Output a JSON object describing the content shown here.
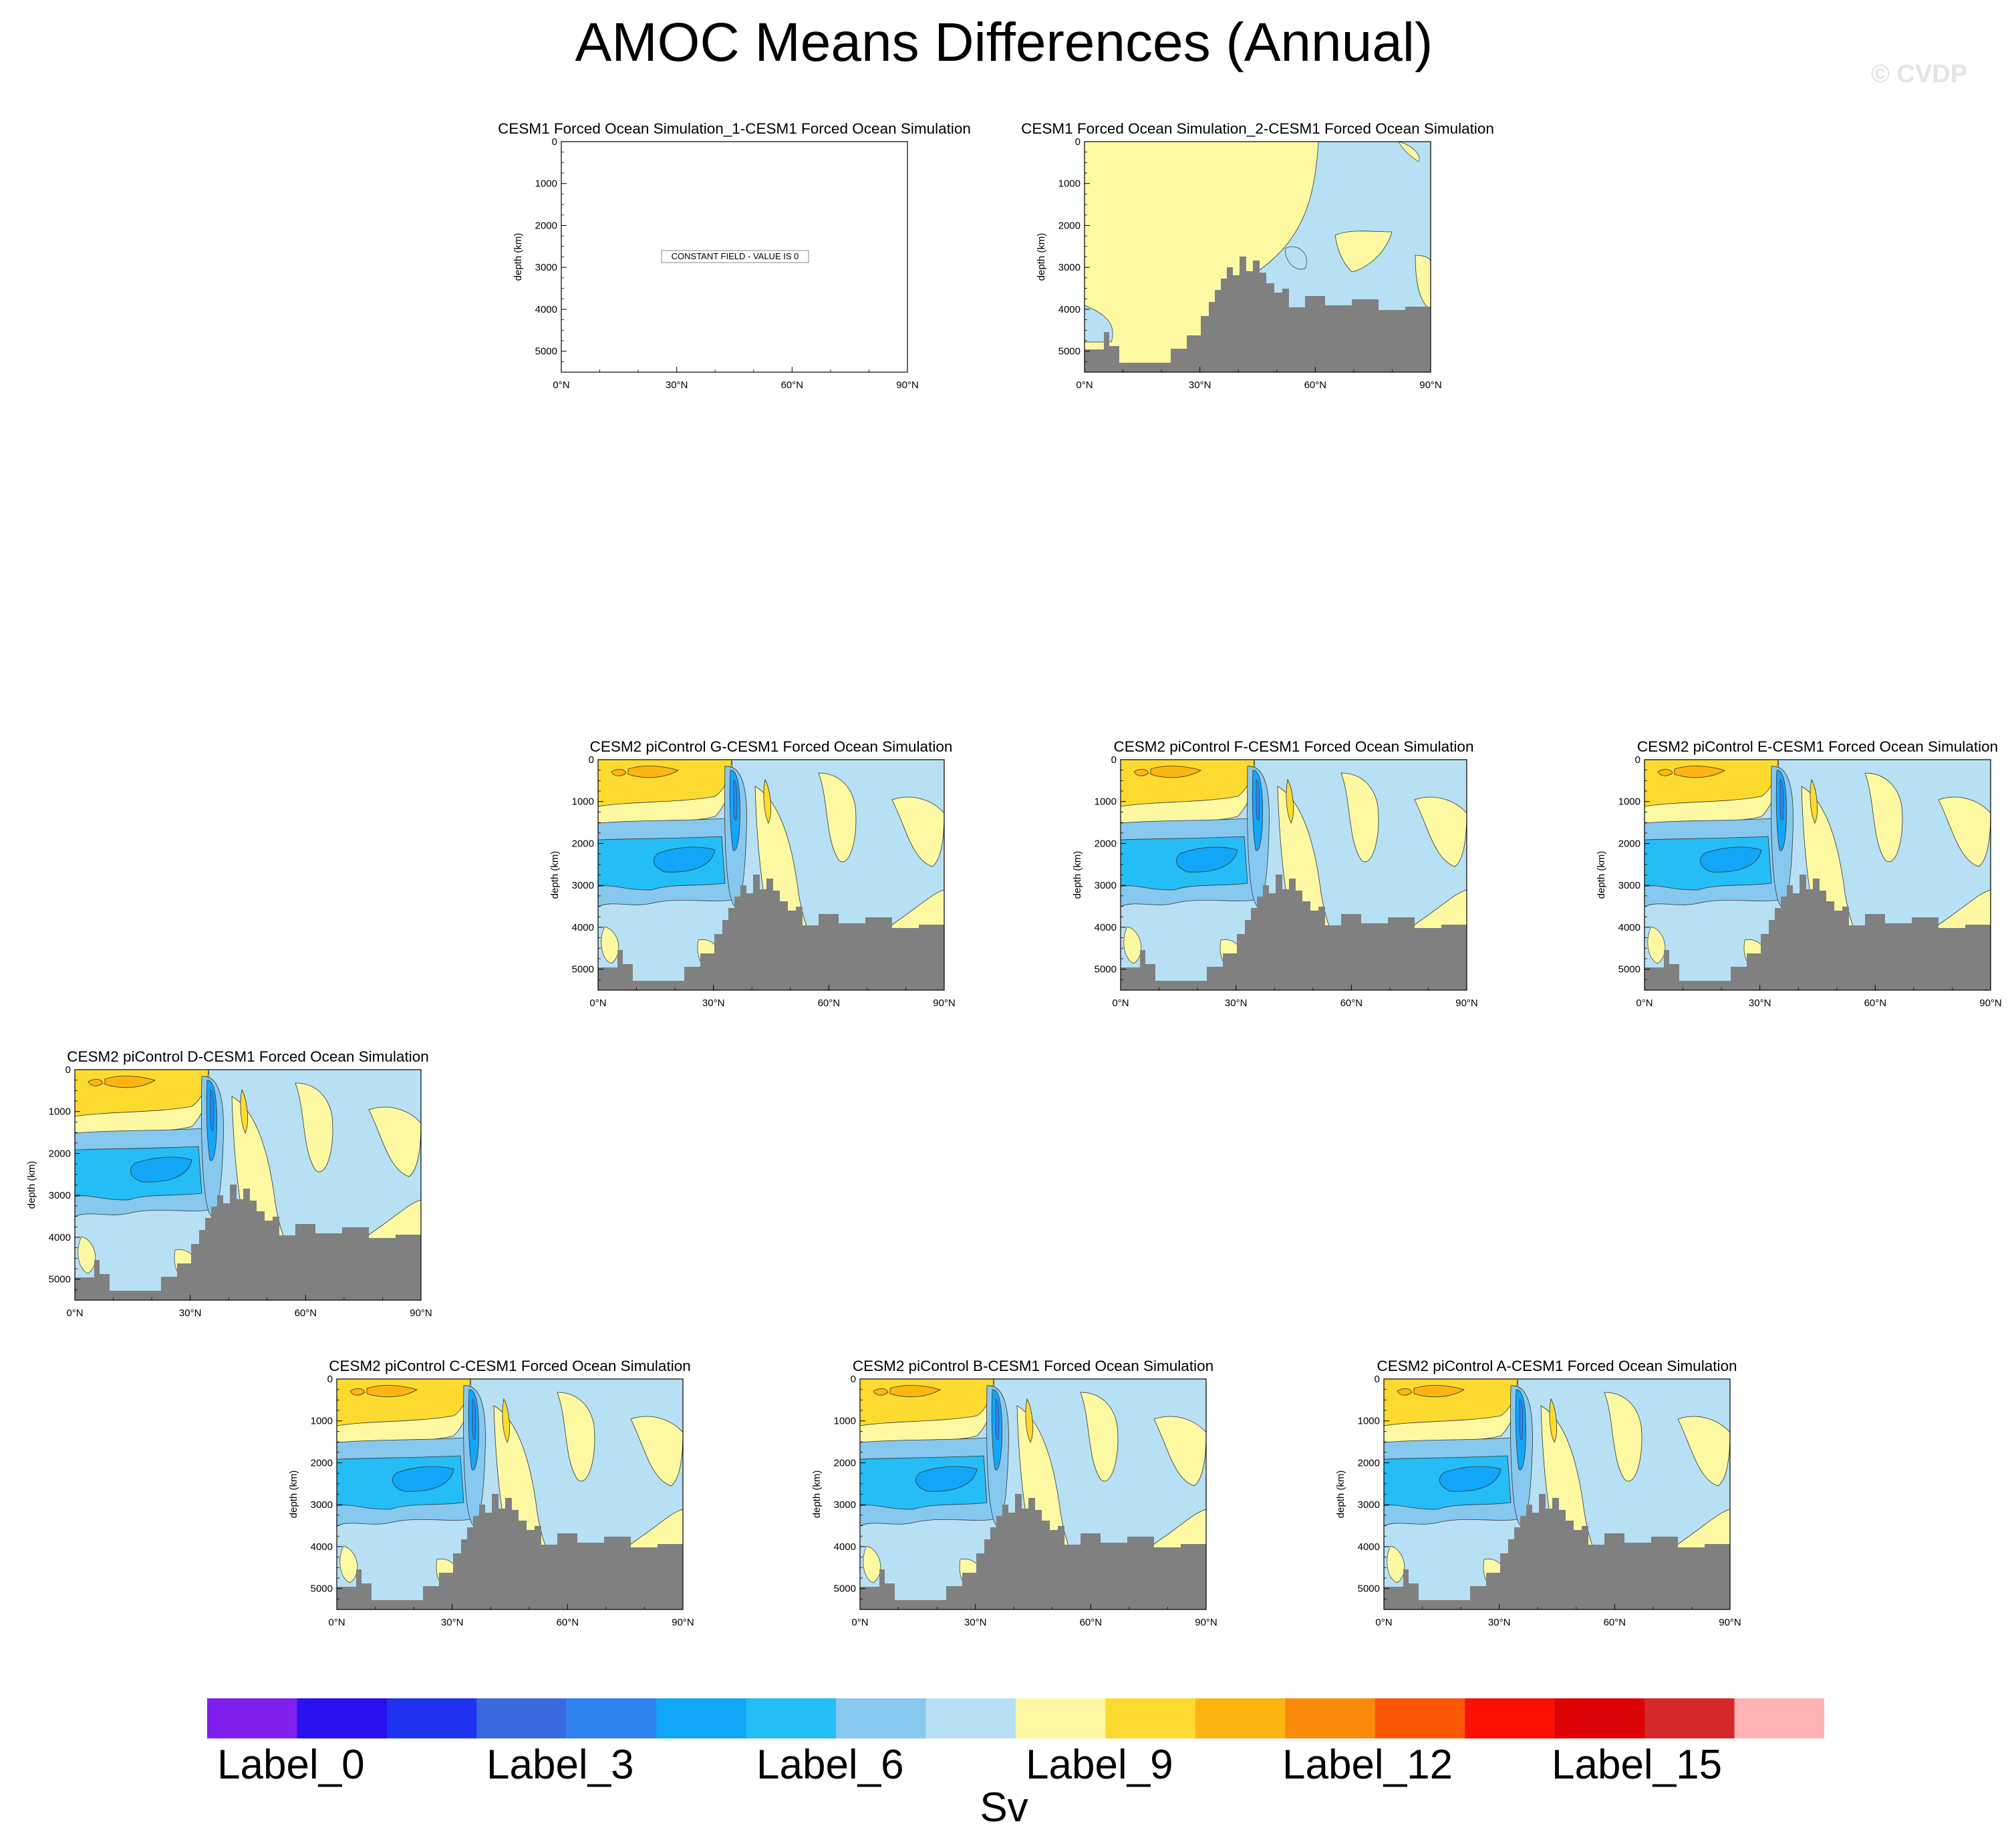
{
  "title": "AMOC Means Differences (Annual)",
  "watermark": "© CVDP",
  "chart_data": {
    "type": "heatmap",
    "title": "AMOC Means Differences (Annual)",
    "xlabel": "",
    "ylabel": "depth (km)",
    "x_ticks": [
      "0°N",
      "30°N",
      "60°N",
      "90°N"
    ],
    "y_ticks": [
      "0",
      "1000",
      "2000",
      "3000",
      "4000",
      "5000"
    ],
    "xlim": [
      0,
      90
    ],
    "ylim": [
      5500,
      0
    ],
    "colorbar": {
      "units": "Sv",
      "labels": [
        "Label_0",
        "Label_3",
        "Label_6",
        "Label_9",
        "Label_12",
        "Label_15"
      ],
      "colors": [
        "#7f1feb",
        "#2b10f0",
        "#2033f0",
        "#3b69e0",
        "#2f84f2",
        "#12a6f9",
        "#25bdf5",
        "#87c8ef",
        "#b7e0f4",
        "#fdf9a2",
        "#fdda30",
        "#fdb511",
        "#fc8a0a",
        "#fc5705",
        "#fb1004",
        "#dc0205",
        "#d4282b",
        "#fdb2b4"
      ]
    },
    "panels": [
      {
        "title": "CESM1 Forced Ocean Simulation_1-CESM1 Forced Ocean Simulation",
        "constant_field": true,
        "note": "CONSTANT FIELD - VALUE IS 0"
      },
      {
        "title": "CESM1 Forced Ocean Simulation_2-CESM1 Forced Ocean Simulation",
        "constant_field": false
      },
      {
        "title": "CESM2 piControl G-CESM1 Forced Ocean Simulation",
        "constant_field": false
      },
      {
        "title": "CESM2 piControl F-CESM1 Forced Ocean Simulation",
        "constant_field": false
      },
      {
        "title": "CESM2 piControl E-CESM1 Forced Ocean Simulation",
        "constant_field": false
      },
      {
        "title": "CESM2 piControl D-CESM1 Forced Ocean Simulation",
        "constant_field": false
      },
      {
        "title": "CESM2 piControl C-CESM1 Forced Ocean Simulation",
        "constant_field": false
      },
      {
        "title": "CESM2 piControl B-CESM1 Forced Ocean Simulation",
        "constant_field": false
      },
      {
        "title": "CESM2 piControl A-CESM1 Forced Ocean Simulation",
        "constant_field": false
      }
    ]
  }
}
